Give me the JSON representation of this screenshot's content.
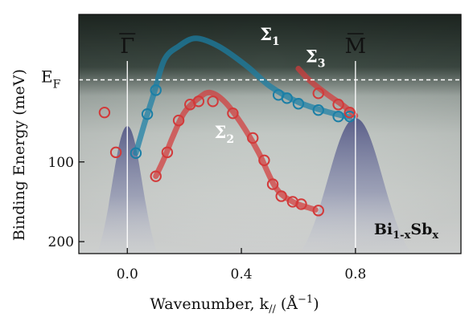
{
  "chart_data": {
    "type": "scatter",
    "title": "",
    "xlabel_text": "Wavenumber, k",
    "xlabel_sub": "//",
    "xlabel_unit": "(Å",
    "xlabel_unit_sup": "−1",
    "xlabel_close": ")",
    "ylabel": "Binding Energy (meV)",
    "xlim": [
      -0.17,
      1.17
    ],
    "ylim": [
      215,
      -85
    ],
    "x_ticks": [
      0.0,
      0.4,
      0.8
    ],
    "x_tick_labels": [
      "0.0",
      "0.4",
      "0.8"
    ],
    "y_ticks": [
      100,
      200
    ],
    "y_tick_labels": [
      "100",
      "200"
    ],
    "fermi_level": {
      "label": "E",
      "sub": "F",
      "energy": -3
    },
    "symmetry_points": [
      {
        "label": "Γ",
        "k": 0.0
      },
      {
        "label": "M",
        "k": 0.8
      }
    ],
    "material_label": {
      "base": "Bi",
      "sub1": "1-x",
      "mid": "Sb",
      "sub2": "x"
    },
    "series": [
      {
        "name": "Σ1",
        "label_base": "Σ",
        "label_sub": "1",
        "color": "#1b7fa6",
        "points": [
          [
            0.03,
            89
          ],
          [
            0.07,
            40
          ],
          [
            0.1,
            10
          ],
          [
            0.53,
            16
          ],
          [
            0.56,
            20
          ],
          [
            0.6,
            27
          ],
          [
            0.67,
            35
          ],
          [
            0.74,
            43
          ],
          [
            0.78,
            43
          ]
        ],
        "curve": [
          [
            0.03,
            89
          ],
          [
            0.06,
            52
          ],
          [
            0.09,
            18
          ],
          [
            0.13,
            -28
          ],
          [
            0.18,
            -45
          ],
          [
            0.24,
            -55
          ],
          [
            0.32,
            -45
          ],
          [
            0.42,
            -20
          ],
          [
            0.5,
            5
          ],
          [
            0.6,
            25
          ],
          [
            0.7,
            37
          ],
          [
            0.78,
            44
          ]
        ]
      },
      {
        "name": "Σ2",
        "label_base": "Σ",
        "label_sub": "2",
        "color": "#d23a3a",
        "points": [
          [
            -0.08,
            38
          ],
          [
            -0.04,
            88
          ],
          [
            0.1,
            118
          ],
          [
            0.14,
            88
          ],
          [
            0.18,
            48
          ],
          [
            0.22,
            28
          ],
          [
            0.25,
            24
          ],
          [
            0.3,
            24
          ],
          [
            0.37,
            39
          ],
          [
            0.44,
            70
          ],
          [
            0.48,
            98
          ],
          [
            0.51,
            128
          ],
          [
            0.54,
            143
          ],
          [
            0.58,
            150
          ],
          [
            0.61,
            153
          ],
          [
            0.67,
            161
          ]
        ],
        "curve": [
          [
            0.1,
            118
          ],
          [
            0.13,
            95
          ],
          [
            0.16,
            68
          ],
          [
            0.2,
            38
          ],
          [
            0.25,
            20
          ],
          [
            0.29,
            13
          ],
          [
            0.34,
            24
          ],
          [
            0.4,
            52
          ],
          [
            0.46,
            88
          ],
          [
            0.52,
            132
          ],
          [
            0.58,
            150
          ],
          [
            0.66,
            160
          ]
        ]
      },
      {
        "name": "Σ3",
        "label_base": "Σ",
        "label_sub": "3",
        "color": "#d23a3a",
        "points": [
          [
            0.67,
            14
          ],
          [
            0.74,
            28
          ],
          [
            0.78,
            38
          ]
        ],
        "curve": [
          [
            0.6,
            -17
          ],
          [
            0.64,
            -2
          ],
          [
            0.7,
            15
          ],
          [
            0.76,
            30
          ],
          [
            0.8,
            42
          ]
        ]
      }
    ]
  }
}
